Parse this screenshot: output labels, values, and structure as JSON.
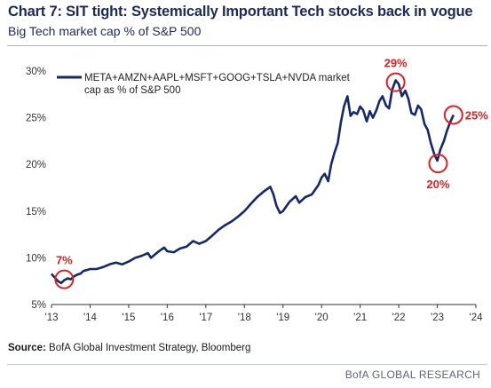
{
  "title": "Chart 7: SIT tight: Systemically Important Tech stocks back in vogue",
  "subtitle": "Big Tech market cap % of S&P 500",
  "source_label": "Source:",
  "source_text": "BofA Global Investment Strategy, Bloomberg",
  "brand": "BofA GLOBAL RESEARCH",
  "chart_data": {
    "type": "line",
    "title": "Chart 7: SIT tight: Systemically Important Tech stocks back in vogue",
    "subtitle": "Big Tech market cap % of S&P 500",
    "xlabel": "",
    "ylabel": "",
    "xlim": [
      2013,
      2024
    ],
    "ylim": [
      5,
      30
    ],
    "x_ticks": [
      2013,
      2014,
      2015,
      2016,
      2017,
      2018,
      2019,
      2020,
      2021,
      2022,
      2023,
      2024
    ],
    "x_tick_labels": [
      "'13",
      "'14",
      "'15",
      "'16",
      "'17",
      "'18",
      "'19",
      "'20",
      "'21",
      "'22",
      "'23",
      "'24"
    ],
    "y_ticks": [
      5,
      10,
      15,
      20,
      25,
      30
    ],
    "y_tick_labels": [
      "5%",
      "10%",
      "15%",
      "20%",
      "25%",
      "30%"
    ],
    "grid": false,
    "legend": {
      "position": "top-left",
      "line1": "META+AMZN+AAPL+MSFT+GOOG+TSLA+NVDA market",
      "line2": "cap as % of S&P 500"
    },
    "series": [
      {
        "name": "META+AMZN+AAPL+MSFT+GOOG+TSLA+NVDA market cap as % of S&P 500",
        "color": "#13296b",
        "points": [
          [
            2013.0,
            8.3
          ],
          [
            2013.08,
            7.9
          ],
          [
            2013.17,
            7.5
          ],
          [
            2013.25,
            7.3
          ],
          [
            2013.33,
            7.6
          ],
          [
            2013.42,
            7.8
          ],
          [
            2013.5,
            7.7
          ],
          [
            2013.58,
            8.0
          ],
          [
            2013.67,
            8.2
          ],
          [
            2013.75,
            8.3
          ],
          [
            2013.83,
            8.6
          ],
          [
            2013.92,
            8.7
          ],
          [
            2014.0,
            8.8
          ],
          [
            2014.17,
            8.8
          ],
          [
            2014.33,
            9.0
          ],
          [
            2014.5,
            9.3
          ],
          [
            2014.67,
            9.5
          ],
          [
            2014.83,
            9.3
          ],
          [
            2015.0,
            9.6
          ],
          [
            2015.17,
            10.0
          ],
          [
            2015.33,
            10.2
          ],
          [
            2015.5,
            10.5
          ],
          [
            2015.58,
            10.0
          ],
          [
            2015.75,
            10.6
          ],
          [
            2015.92,
            11.1
          ],
          [
            2016.0,
            10.7
          ],
          [
            2016.17,
            10.6
          ],
          [
            2016.33,
            11.0
          ],
          [
            2016.5,
            11.2
          ],
          [
            2016.67,
            11.8
          ],
          [
            2016.83,
            11.5
          ],
          [
            2017.0,
            11.8
          ],
          [
            2017.17,
            12.4
          ],
          [
            2017.33,
            13.0
          ],
          [
            2017.5,
            13.5
          ],
          [
            2017.67,
            13.9
          ],
          [
            2017.83,
            14.4
          ],
          [
            2018.0,
            15.0
          ],
          [
            2018.17,
            15.8
          ],
          [
            2018.33,
            16.5
          ],
          [
            2018.5,
            17.1
          ],
          [
            2018.67,
            17.6
          ],
          [
            2018.75,
            16.8
          ],
          [
            2018.83,
            15.6
          ],
          [
            2018.92,
            14.8
          ],
          [
            2019.0,
            15.0
          ],
          [
            2019.17,
            16.0
          ],
          [
            2019.33,
            16.6
          ],
          [
            2019.42,
            15.9
          ],
          [
            2019.58,
            16.5
          ],
          [
            2019.75,
            16.8
          ],
          [
            2019.92,
            17.8
          ],
          [
            2020.0,
            18.6
          ],
          [
            2020.08,
            19.0
          ],
          [
            2020.17,
            18.2
          ],
          [
            2020.25,
            20.0
          ],
          [
            2020.33,
            21.2
          ],
          [
            2020.42,
            22.3
          ],
          [
            2020.5,
            24.5
          ],
          [
            2020.58,
            26.2
          ],
          [
            2020.67,
            27.3
          ],
          [
            2020.75,
            25.2
          ],
          [
            2020.83,
            25.6
          ],
          [
            2020.92,
            25.4
          ],
          [
            2021.0,
            26.2
          ],
          [
            2021.08,
            25.8
          ],
          [
            2021.17,
            24.6
          ],
          [
            2021.25,
            25.7
          ],
          [
            2021.33,
            25.0
          ],
          [
            2021.42,
            25.8
          ],
          [
            2021.5,
            26.8
          ],
          [
            2021.58,
            27.3
          ],
          [
            2021.67,
            26.3
          ],
          [
            2021.75,
            26.0
          ],
          [
            2021.83,
            28.0
          ],
          [
            2021.92,
            29.0
          ],
          [
            2022.0,
            28.6
          ],
          [
            2022.08,
            27.3
          ],
          [
            2022.17,
            27.9
          ],
          [
            2022.25,
            27.0
          ],
          [
            2022.33,
            25.5
          ],
          [
            2022.42,
            25.3
          ],
          [
            2022.5,
            26.3
          ],
          [
            2022.58,
            25.9
          ],
          [
            2022.67,
            24.3
          ],
          [
            2022.75,
            23.7
          ],
          [
            2022.83,
            22.3
          ],
          [
            2022.92,
            21.1
          ],
          [
            2023.0,
            20.4
          ],
          [
            2023.08,
            21.6
          ],
          [
            2023.17,
            22.5
          ],
          [
            2023.25,
            23.6
          ],
          [
            2023.33,
            24.5
          ],
          [
            2023.42,
            25.3
          ]
        ]
      }
    ],
    "annotations": [
      {
        "label": "7%",
        "x": 2013.33,
        "y": 7.7,
        "color": "#e02020",
        "label_side": "above"
      },
      {
        "label": "29%",
        "x": 2021.92,
        "y": 28.8,
        "color": "#e02020",
        "label_side": "above"
      },
      {
        "label": "20%",
        "x": 2023.02,
        "y": 20.1,
        "color": "#e02020",
        "label_side": "below"
      },
      {
        "label": "25%",
        "x": 2023.42,
        "y": 25.3,
        "color": "#e02020",
        "label_side": "right"
      }
    ]
  }
}
